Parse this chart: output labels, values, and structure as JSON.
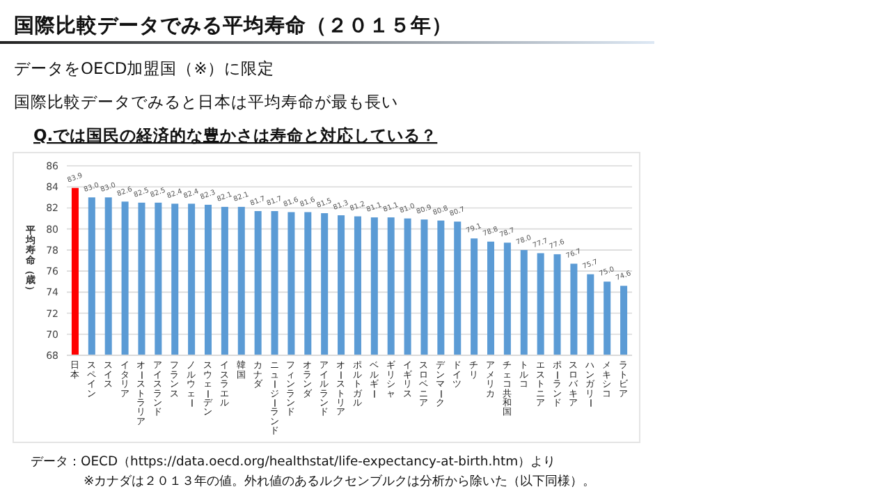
{
  "chart_data": {
    "type": "bar",
    "title": "国際比較データでみる平均寿命（２０１５年）",
    "subtitle": "Q.では国民の経済的な豊かさは寿命と対応している？",
    "ylabel": "平均寿命（歳）",
    "annotations": [
      "データをOECD加盟国（※）に限定",
      "国際比較データでみると日本は平均寿命が最も長い",
      "データ：OECD（https://data.oecd.org/healthstat/life-expectancy-at-birth.htm）より",
      "※カナダは２０１３年の値。外れ値のあるルクセンブルクは分析から除いた（以下同様）。"
    ],
    "categories": [
      "日本",
      "スペイン",
      "スイス",
      "イタリア",
      "オーストラリア",
      "アイスランド",
      "フランス",
      "ノルウェー",
      "スウェーデン",
      "イスラエル",
      "韓国",
      "カナダ",
      "ニュージーランド",
      "フィンランド",
      "オランダ",
      "アイルランド",
      "オーストリア",
      "ポルトガル",
      "ベルギー",
      "ギリシャ",
      "イギリス",
      "スロベニア",
      "デンマーク",
      "ドイツ",
      "チリ",
      "アメリカ",
      "チェコ共和国",
      "トルコ",
      "エストニア",
      "ポーランド",
      "スロバキア",
      "ハンガリー",
      "メキシコ",
      "ラトビア"
    ],
    "values": [
      83.9,
      83.0,
      83.0,
      82.6,
      82.5,
      82.5,
      82.4,
      82.4,
      82.3,
      82.1,
      82.1,
      81.7,
      81.7,
      81.6,
      81.6,
      81.5,
      81.3,
      81.2,
      81.1,
      81.1,
      81.0,
      80.9,
      80.8,
      80.7,
      79.1,
      78.8,
      78.7,
      78.0,
      77.7,
      77.6,
      76.7,
      75.7,
      75.0,
      74.6
    ],
    "colors": [
      "#ff0000",
      "#5b9bd5",
      "#5b9bd5",
      "#5b9bd5",
      "#5b9bd5",
      "#5b9bd5",
      "#5b9bd5",
      "#5b9bd5",
      "#5b9bd5",
      "#5b9bd5",
      "#5b9bd5",
      "#5b9bd5",
      "#5b9bd5",
      "#5b9bd5",
      "#5b9bd5",
      "#5b9bd5",
      "#5b9bd5",
      "#5b9bd5",
      "#5b9bd5",
      "#5b9bd5",
      "#5b9bd5",
      "#5b9bd5",
      "#5b9bd5",
      "#5b9bd5",
      "#5b9bd5",
      "#5b9bd5",
      "#5b9bd5",
      "#5b9bd5",
      "#5b9bd5",
      "#5b9bd5",
      "#5b9bd5",
      "#5b9bd5",
      "#5b9bd5",
      "#5b9bd5"
    ],
    "value_labels": [
      "83.9",
      "83.0",
      "83.0",
      "82.6",
      "82.5",
      "82.5",
      "82.4",
      "82.4",
      "82.3",
      "82.1",
      "82.1",
      "81.7",
      "81.7",
      "81.6",
      "81.6",
      "81.5",
      "81.3",
      "81.2",
      "81.1",
      "81.1",
      "81.0",
      "80.9",
      "80.8",
      "80.7",
      "79.1",
      "78.8",
      "78.7",
      "78.0",
      "77.7",
      "77.6",
      "76.7",
      "75.7",
      "75.0",
      "74.6"
    ],
    "ylim": [
      68,
      86
    ],
    "yticks": [
      68,
      70,
      72,
      74,
      76,
      78,
      80,
      82,
      84,
      86
    ],
    "grid": "y"
  }
}
